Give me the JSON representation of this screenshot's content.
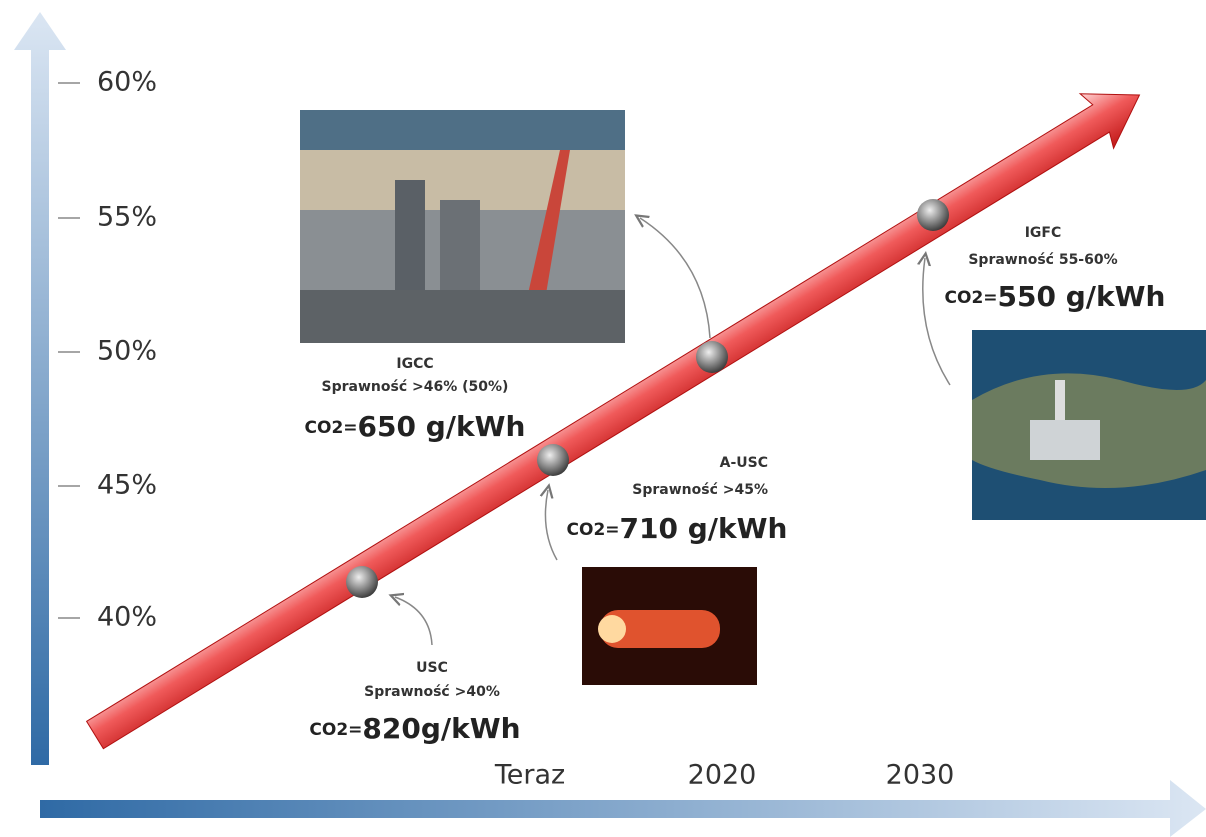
{
  "y_axis": {
    "ticks": [
      "60%",
      "55%",
      "50%",
      "45%",
      "40%"
    ]
  },
  "x_axis": {
    "labels": [
      "Teraz",
      "2020",
      "2030"
    ]
  },
  "milestones": [
    {
      "name": "USC",
      "efficiency": "Sprawność >40%",
      "co2_prefix": "CO2=",
      "co2": "820g/kWh"
    },
    {
      "name": "IGCC",
      "efficiency": "Sprawność >46% (50%)",
      "co2_prefix": "CO2=",
      "co2": "650 g/kWh"
    },
    {
      "name": "A-USC",
      "efficiency": "Sprawność >45%",
      "co2_prefix": "CO2=",
      "co2": "710 g/kWh"
    },
    {
      "name": "IGFC",
      "efficiency": "Sprawność 55-60%",
      "co2_prefix": "CO2=",
      "co2": "550 g/kWh"
    }
  ]
}
